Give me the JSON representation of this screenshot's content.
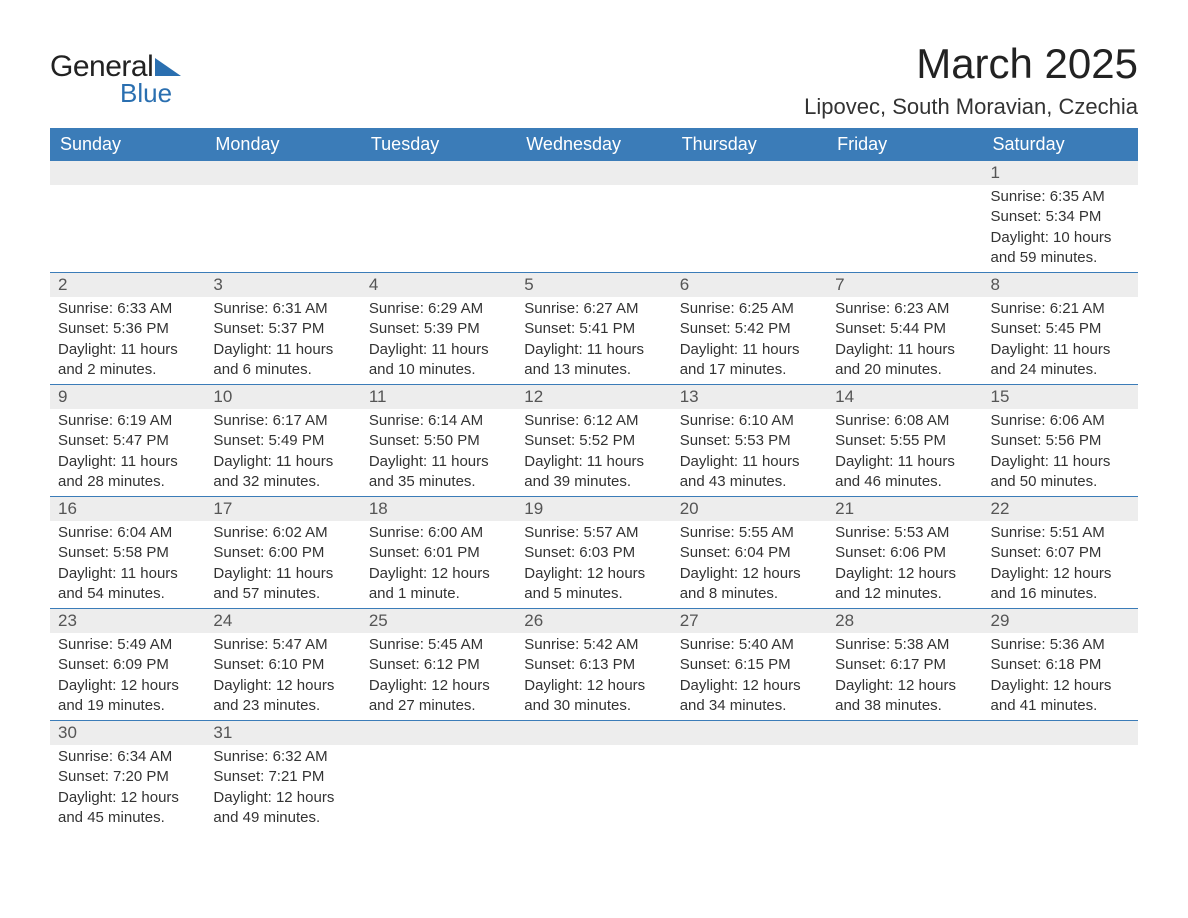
{
  "logo": {
    "text1": "General",
    "text2": "Blue"
  },
  "title": "March 2025",
  "location": "Lipovec, South Moravian, Czechia",
  "colors": {
    "header_bg": "#3b7cb8",
    "header_text": "#ffffff",
    "daynum_bg": "#ededed",
    "divider": "#3b7cb8",
    "logo_blue": "#2a6fb0"
  },
  "weekdays": [
    "Sunday",
    "Monday",
    "Tuesday",
    "Wednesday",
    "Thursday",
    "Friday",
    "Saturday"
  ],
  "weeks": [
    [
      {
        "blank": true
      },
      {
        "blank": true
      },
      {
        "blank": true
      },
      {
        "blank": true
      },
      {
        "blank": true
      },
      {
        "blank": true
      },
      {
        "n": "1",
        "sunrise": "6:35 AM",
        "sunset": "5:34 PM",
        "daylight": "10 hours and 59 minutes."
      }
    ],
    [
      {
        "n": "2",
        "sunrise": "6:33 AM",
        "sunset": "5:36 PM",
        "daylight": "11 hours and 2 minutes."
      },
      {
        "n": "3",
        "sunrise": "6:31 AM",
        "sunset": "5:37 PM",
        "daylight": "11 hours and 6 minutes."
      },
      {
        "n": "4",
        "sunrise": "6:29 AM",
        "sunset": "5:39 PM",
        "daylight": "11 hours and 10 minutes."
      },
      {
        "n": "5",
        "sunrise": "6:27 AM",
        "sunset": "5:41 PM",
        "daylight": "11 hours and 13 minutes."
      },
      {
        "n": "6",
        "sunrise": "6:25 AM",
        "sunset": "5:42 PM",
        "daylight": "11 hours and 17 minutes."
      },
      {
        "n": "7",
        "sunrise": "6:23 AM",
        "sunset": "5:44 PM",
        "daylight": "11 hours and 20 minutes."
      },
      {
        "n": "8",
        "sunrise": "6:21 AM",
        "sunset": "5:45 PM",
        "daylight": "11 hours and 24 minutes."
      }
    ],
    [
      {
        "n": "9",
        "sunrise": "6:19 AM",
        "sunset": "5:47 PM",
        "daylight": "11 hours and 28 minutes."
      },
      {
        "n": "10",
        "sunrise": "6:17 AM",
        "sunset": "5:49 PM",
        "daylight": "11 hours and 32 minutes."
      },
      {
        "n": "11",
        "sunrise": "6:14 AM",
        "sunset": "5:50 PM",
        "daylight": "11 hours and 35 minutes."
      },
      {
        "n": "12",
        "sunrise": "6:12 AM",
        "sunset": "5:52 PM",
        "daylight": "11 hours and 39 minutes."
      },
      {
        "n": "13",
        "sunrise": "6:10 AM",
        "sunset": "5:53 PM",
        "daylight": "11 hours and 43 minutes."
      },
      {
        "n": "14",
        "sunrise": "6:08 AM",
        "sunset": "5:55 PM",
        "daylight": "11 hours and 46 minutes."
      },
      {
        "n": "15",
        "sunrise": "6:06 AM",
        "sunset": "5:56 PM",
        "daylight": "11 hours and 50 minutes."
      }
    ],
    [
      {
        "n": "16",
        "sunrise": "6:04 AM",
        "sunset": "5:58 PM",
        "daylight": "11 hours and 54 minutes."
      },
      {
        "n": "17",
        "sunrise": "6:02 AM",
        "sunset": "6:00 PM",
        "daylight": "11 hours and 57 minutes."
      },
      {
        "n": "18",
        "sunrise": "6:00 AM",
        "sunset": "6:01 PM",
        "daylight": "12 hours and 1 minute."
      },
      {
        "n": "19",
        "sunrise": "5:57 AM",
        "sunset": "6:03 PM",
        "daylight": "12 hours and 5 minutes."
      },
      {
        "n": "20",
        "sunrise": "5:55 AM",
        "sunset": "6:04 PM",
        "daylight": "12 hours and 8 minutes."
      },
      {
        "n": "21",
        "sunrise": "5:53 AM",
        "sunset": "6:06 PM",
        "daylight": "12 hours and 12 minutes."
      },
      {
        "n": "22",
        "sunrise": "5:51 AM",
        "sunset": "6:07 PM",
        "daylight": "12 hours and 16 minutes."
      }
    ],
    [
      {
        "n": "23",
        "sunrise": "5:49 AM",
        "sunset": "6:09 PM",
        "daylight": "12 hours and 19 minutes."
      },
      {
        "n": "24",
        "sunrise": "5:47 AM",
        "sunset": "6:10 PM",
        "daylight": "12 hours and 23 minutes."
      },
      {
        "n": "25",
        "sunrise": "5:45 AM",
        "sunset": "6:12 PM",
        "daylight": "12 hours and 27 minutes."
      },
      {
        "n": "26",
        "sunrise": "5:42 AM",
        "sunset": "6:13 PM",
        "daylight": "12 hours and 30 minutes."
      },
      {
        "n": "27",
        "sunrise": "5:40 AM",
        "sunset": "6:15 PM",
        "daylight": "12 hours and 34 minutes."
      },
      {
        "n": "28",
        "sunrise": "5:38 AM",
        "sunset": "6:17 PM",
        "daylight": "12 hours and 38 minutes."
      },
      {
        "n": "29",
        "sunrise": "5:36 AM",
        "sunset": "6:18 PM",
        "daylight": "12 hours and 41 minutes."
      }
    ],
    [
      {
        "n": "30",
        "sunrise": "6:34 AM",
        "sunset": "7:20 PM",
        "daylight": "12 hours and 45 minutes."
      },
      {
        "n": "31",
        "sunrise": "6:32 AM",
        "sunset": "7:21 PM",
        "daylight": "12 hours and 49 minutes."
      },
      {
        "blank": true
      },
      {
        "blank": true
      },
      {
        "blank": true
      },
      {
        "blank": true
      },
      {
        "blank": true
      }
    ]
  ],
  "labels": {
    "sunrise": "Sunrise: ",
    "sunset": "Sunset: ",
    "daylight": "Daylight: "
  }
}
